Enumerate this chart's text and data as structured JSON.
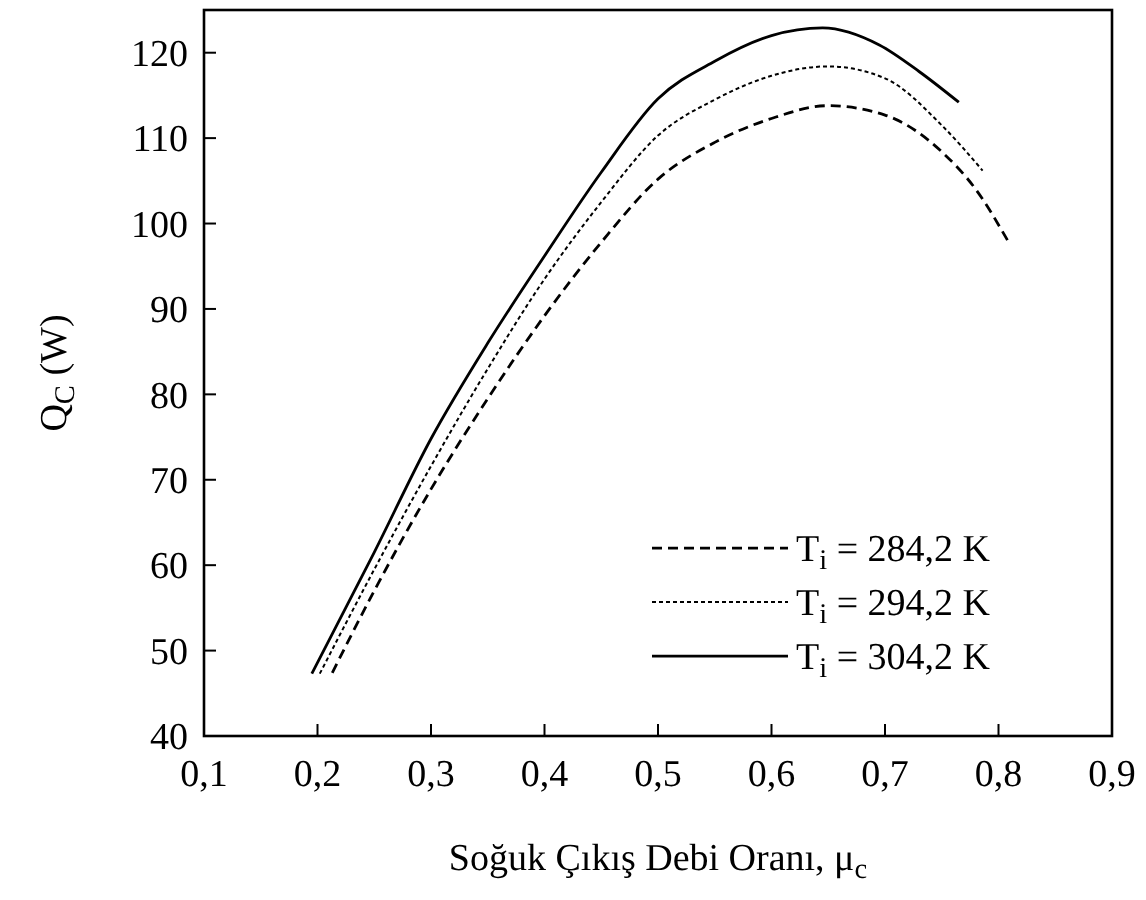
{
  "chart_data": {
    "type": "line",
    "xlabel": "Soğuk Çıkış Debi Oranı, μ$_{c}$",
    "ylabel": "Q$_{C}$ (W)",
    "xlim": [
      0.1,
      0.9
    ],
    "ylim": [
      40,
      125
    ],
    "xticks": [
      {
        "value": 0.1,
        "label": "0,1"
      },
      {
        "value": 0.2,
        "label": "0,2"
      },
      {
        "value": 0.3,
        "label": "0,3"
      },
      {
        "value": 0.4,
        "label": "0,4"
      },
      {
        "value": 0.5,
        "label": "0,5"
      },
      {
        "value": 0.6,
        "label": "0,6"
      },
      {
        "value": 0.7,
        "label": "0,7"
      },
      {
        "value": 0.8,
        "label": "0,8"
      },
      {
        "value": 0.9,
        "label": "0,9"
      }
    ],
    "yticks": [
      40,
      50,
      60,
      70,
      80,
      90,
      100,
      110,
      120
    ],
    "grid": false,
    "legend": "bottom right",
    "series": [
      {
        "name": "T$_{i}$ = 284,2 K",
        "color": "#000000",
        "line_style": "dashed",
        "x": [
          0.213,
          0.25,
          0.3,
          0.35,
          0.4,
          0.45,
          0.5,
          0.55,
          0.6,
          0.65,
          0.7,
          0.75,
          0.78,
          0.809
        ],
        "values": [
          47.4,
          57,
          68.9,
          79.5,
          89.2,
          97.8,
          105.2,
          109.5,
          112.3,
          113.8,
          112.7,
          108.4,
          104,
          97.8
        ]
      },
      {
        "name": "T$_{i}$ = 294,2 K",
        "color": "#000000",
        "line_style": "dotted",
        "x": [
          0.202,
          0.25,
          0.3,
          0.35,
          0.4,
          0.45,
          0.5,
          0.55,
          0.6,
          0.65,
          0.7,
          0.75,
          0.786
        ],
        "values": [
          47.3,
          59.5,
          71.6,
          83,
          93.5,
          102.5,
          110.3,
          114.5,
          117.3,
          118.4,
          117,
          111.5,
          106.2
        ]
      },
      {
        "name": "T$_{i}$ = 304,2 K",
        "color": "#000000",
        "line_style": "solid",
        "x": [
          0.195,
          0.25,
          0.3,
          0.35,
          0.4,
          0.45,
          0.5,
          0.55,
          0.6,
          0.645,
          0.695,
          0.73,
          0.765
        ],
        "values": [
          47.3,
          61.5,
          74.8,
          86,
          96.2,
          106,
          114.6,
          119,
          122,
          122.9,
          120.9,
          117.8,
          114.2
        ]
      }
    ]
  }
}
